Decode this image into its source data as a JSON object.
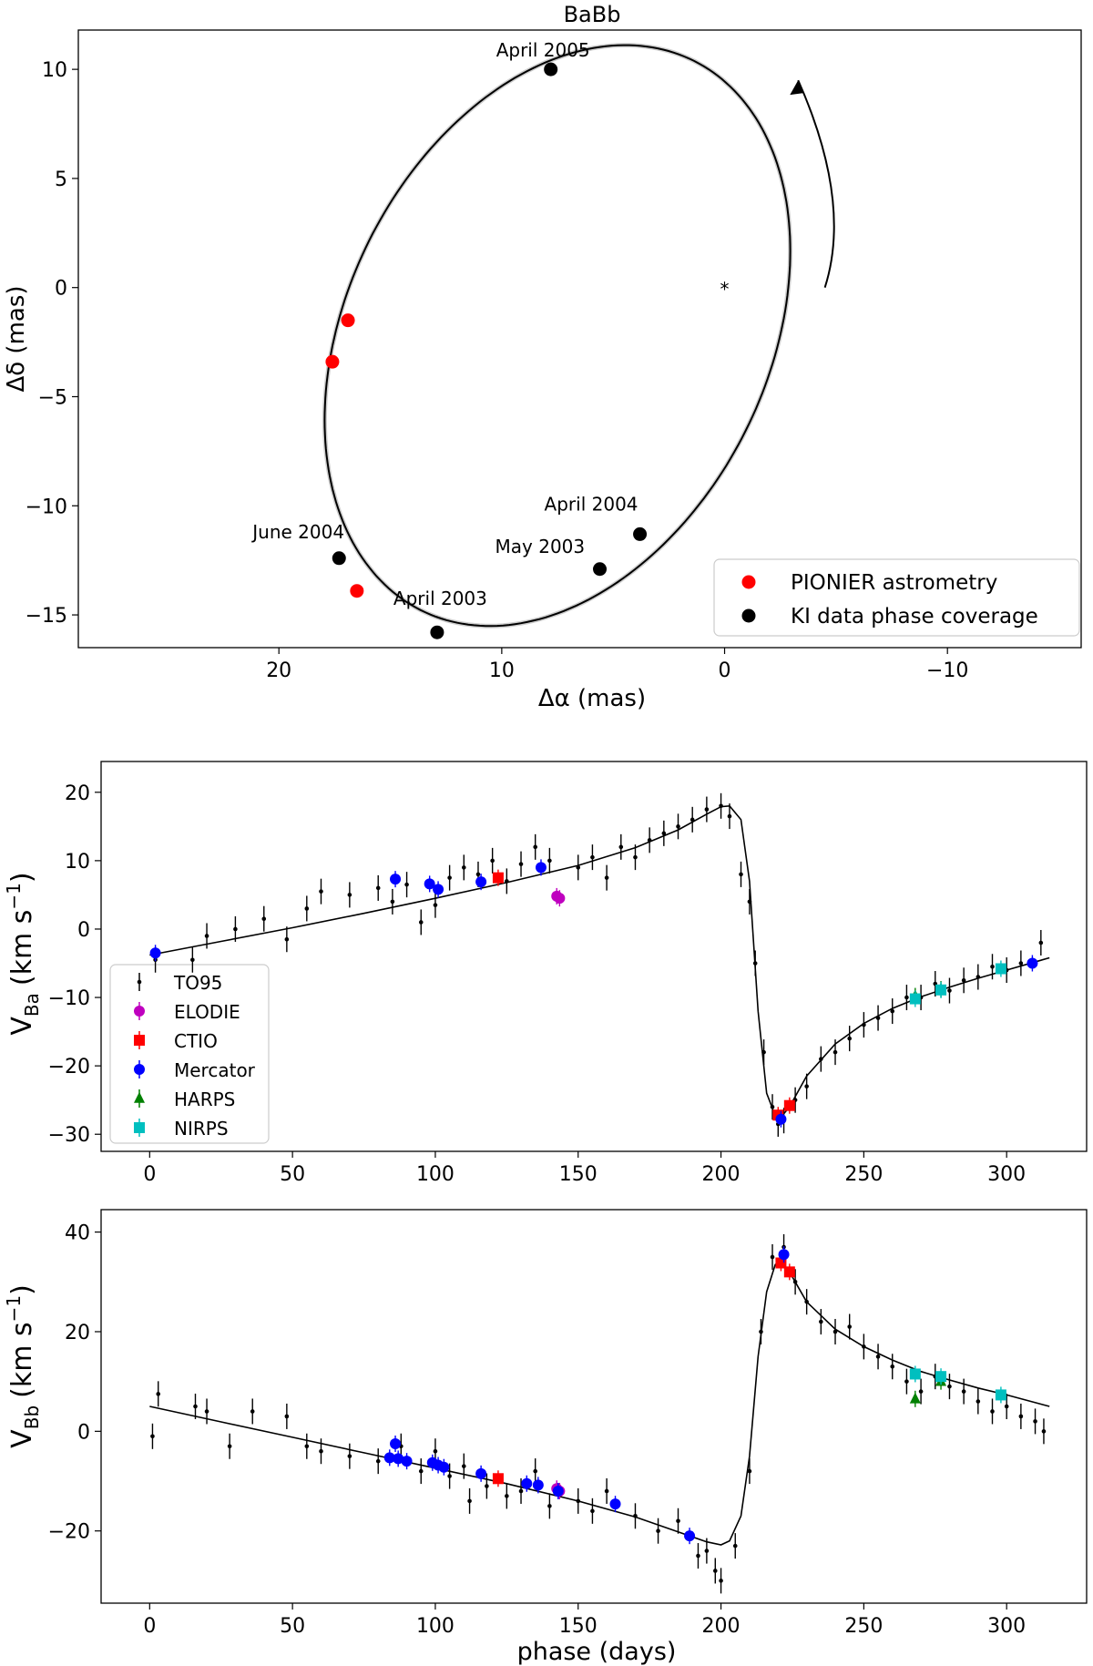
{
  "chart_data": [
    {
      "type": "scatter",
      "title": "BaBb",
      "xlabel": "Δα (mas)",
      "ylabel": "Δδ (mas)",
      "xlim": [
        29,
        -16
      ],
      "ylim": [
        -16.5,
        11.8
      ],
      "xticks": [
        20,
        10,
        0,
        -10
      ],
      "xtick_labels": [
        "20",
        "10",
        "0",
        "−10"
      ],
      "yticks": [
        10,
        5,
        0,
        -5,
        -10,
        -15
      ],
      "ytick_labels": [
        "10",
        "5",
        "0",
        "−5",
        "−10",
        "−15"
      ],
      "orbit": {
        "center": [
          7.5,
          -2.2
        ],
        "semi_axes": [
          9.5,
          14.0
        ],
        "rotation_deg": 25,
        "direction": "counter-clockwise"
      },
      "primary_marker": {
        "x": 0,
        "y": 0,
        "symbol": "*"
      },
      "arrow": {
        "from": [
          -4.5,
          0
        ],
        "to": [
          -3.3,
          9.5
        ]
      },
      "series": [
        {
          "name": "PIONIER astrometry",
          "color": "#ff0000",
          "points": [
            [
              16.9,
              -1.5
            ],
            [
              17.6,
              -3.4
            ],
            [
              16.5,
              -13.9
            ]
          ]
        },
        {
          "name": "KI data phase coverage",
          "color": "#000000",
          "points": [
            [
              7.8,
              10.0
            ],
            [
              17.3,
              -12.4
            ],
            [
              12.9,
              -15.8
            ],
            [
              5.6,
              -12.9
            ],
            [
              3.8,
              -11.3
            ]
          ],
          "labels": [
            "April 2005",
            "June 2004",
            "April 2003",
            "May 2003",
            "April 2004"
          ]
        }
      ],
      "legend": "bottom-right"
    },
    {
      "type": "scatter",
      "title": "",
      "xlabel": "",
      "ylabel": "V_Ba (km s^-1)",
      "ylabel_main": "V",
      "ylabel_sub": "Ba",
      "ylabel_unit": "(km s",
      "ylabel_exp": "−1",
      "ylabel_close": ")",
      "xlim": [
        -17,
        328
      ],
      "ylim": [
        -32.5,
        24.5
      ],
      "xticks": [
        0,
        50,
        100,
        150,
        200,
        250,
        300
      ],
      "xtick_labels": [
        "0",
        "50",
        "100",
        "150",
        "200",
        "250",
        "300"
      ],
      "yticks": [
        20,
        10,
        0,
        -10,
        -20,
        -30
      ],
      "ytick_labels": [
        "20",
        "10",
        "0",
        "−10",
        "−20",
        "−30"
      ],
      "model": {
        "x": [
          0,
          25,
          50,
          75,
          100,
          125,
          150,
          170,
          185,
          195,
          200,
          203,
          207,
          210,
          213,
          216,
          219,
          221,
          224,
          230,
          240,
          250,
          260,
          270,
          280,
          290,
          300,
          315
        ],
        "y": [
          -3.8,
          -1.8,
          0.2,
          2.3,
          4.5,
          6.8,
          9.3,
          11.9,
          14.5,
          16.8,
          17.9,
          18.0,
          16.0,
          7.0,
          -12.0,
          -24.0,
          -27.3,
          -27.5,
          -26.0,
          -21.5,
          -16.8,
          -13.8,
          -11.6,
          -9.9,
          -8.5,
          -7.2,
          -6.0,
          -4.2
        ]
      },
      "series": [
        {
          "name": "TO95",
          "color": "#000000",
          "marker": "point",
          "points": [
            [
              2,
              -4.5
            ],
            [
              15,
              -4.5
            ],
            [
              20,
              -1
            ],
            [
              30,
              0
            ],
            [
              40,
              1.5
            ],
            [
              48,
              -1.5
            ],
            [
              55,
              3
            ],
            [
              60,
              5.5
            ],
            [
              70,
              5
            ],
            [
              80,
              6
            ],
            [
              85,
              4
            ],
            [
              90,
              6.5
            ],
            [
              95,
              1
            ],
            [
              100,
              3.5
            ],
            [
              105,
              7.5
            ],
            [
              110,
              9
            ],
            [
              115,
              8
            ],
            [
              120,
              10
            ],
            [
              125,
              7
            ],
            [
              130,
              9.5
            ],
            [
              135,
              12
            ],
            [
              140,
              10
            ],
            [
              150,
              9
            ],
            [
              155,
              10.5
            ],
            [
              160,
              7.5
            ],
            [
              165,
              12
            ],
            [
              170,
              10.5
            ],
            [
              175,
              13
            ],
            [
              180,
              14
            ],
            [
              185,
              15
            ],
            [
              190,
              16
            ],
            [
              195,
              17.5
            ],
            [
              200,
              18
            ],
            [
              203,
              16.5
            ],
            [
              207,
              8
            ],
            [
              210,
              4
            ],
            [
              212,
              -5
            ],
            [
              215,
              -18
            ],
            [
              218,
              -26
            ],
            [
              220,
              -28.5
            ],
            [
              222,
              -28
            ],
            [
              226,
              -25
            ],
            [
              230,
              -23
            ],
            [
              235,
              -19
            ],
            [
              240,
              -18
            ],
            [
              245,
              -16
            ],
            [
              250,
              -14
            ],
            [
              255,
              -13
            ],
            [
              260,
              -12
            ],
            [
              265,
              -10
            ],
            [
              270,
              -10
            ],
            [
              275,
              -8
            ],
            [
              280,
              -9
            ],
            [
              285,
              -7.5
            ],
            [
              290,
              -7
            ],
            [
              295,
              -5.5
            ],
            [
              300,
              -6
            ],
            [
              305,
              -5
            ],
            [
              312,
              -2
            ]
          ]
        },
        {
          "name": "ELODIE",
          "color": "#bf00bf",
          "marker": "circle",
          "points": [
            [
              142.5,
              4.8
            ],
            [
              143.5,
              4.5
            ]
          ]
        },
        {
          "name": "CTIO",
          "color": "#ff0000",
          "marker": "square",
          "points": [
            [
              122,
              7.5
            ],
            [
              220,
              -27.2
            ],
            [
              224,
              -25.8
            ]
          ]
        },
        {
          "name": "Mercator",
          "color": "#0000ff",
          "marker": "circle",
          "points": [
            [
              2,
              -3.5
            ],
            [
              86,
              7.3
            ],
            [
              98,
              6.6
            ],
            [
              101,
              5.8
            ],
            [
              116,
              6.9
            ],
            [
              137,
              9.0
            ],
            [
              221,
              -27.8
            ],
            [
              309,
              -5.0
            ]
          ]
        },
        {
          "name": "HARPS",
          "color": "#008000",
          "marker": "triangle",
          "points": [
            [
              268,
              -9.8
            ],
            [
              277,
              -8.8
            ]
          ]
        },
        {
          "name": "NIRPS",
          "color": "#00bfbf",
          "marker": "square",
          "points": [
            [
              268,
              -10.2
            ],
            [
              277,
              -8.9
            ],
            [
              298,
              -5.8
            ]
          ]
        }
      ],
      "legend": "left"
    },
    {
      "type": "scatter",
      "title": "",
      "xlabel": "phase (days)",
      "ylabel": "V_Bb (km s^-1)",
      "ylabel_main": "V",
      "ylabel_sub": "Bb",
      "ylabel_unit": "(km s",
      "ylabel_exp": "−1",
      "ylabel_close": ")",
      "xlim": [
        -17,
        328
      ],
      "ylim": [
        -34.5,
        44.5
      ],
      "xticks": [
        0,
        50,
        100,
        150,
        200,
        250,
        300
      ],
      "xtick_labels": [
        "0",
        "50",
        "100",
        "150",
        "200",
        "250",
        "300"
      ],
      "yticks": [
        40,
        20,
        0,
        -20
      ],
      "ytick_labels": [
        "40",
        "20",
        "0",
        "−20"
      ],
      "model": {
        "x": [
          0,
          25,
          50,
          75,
          100,
          125,
          150,
          170,
          185,
          195,
          200,
          203,
          207,
          210,
          213,
          216,
          219,
          221,
          224,
          230,
          240,
          250,
          260,
          270,
          280,
          290,
          300,
          315
        ],
        "y": [
          5.0,
          1.9,
          -1.2,
          -4.3,
          -7.4,
          -10.5,
          -14.0,
          -17.2,
          -20.2,
          -22.2,
          -22.8,
          -22.0,
          -17.0,
          -5.0,
          15.0,
          28.0,
          33.5,
          34.0,
          32.0,
          26.0,
          20.5,
          17.0,
          14.3,
          12.0,
          10.3,
          8.7,
          7.3,
          5.0
        ]
      },
      "series": [
        {
          "name": "TO95",
          "color": "#000000",
          "marker": "point",
          "points": [
            [
              1,
              -1
            ],
            [
              3,
              7.5
            ],
            [
              16,
              5
            ],
            [
              20,
              4
            ],
            [
              28,
              -3
            ],
            [
              36,
              4
            ],
            [
              48,
              3
            ],
            [
              55,
              -3
            ],
            [
              60,
              -4
            ],
            [
              70,
              -5
            ],
            [
              80,
              -6
            ],
            [
              88,
              -3
            ],
            [
              95,
              -8
            ],
            [
              100,
              -4
            ],
            [
              105,
              -9
            ],
            [
              110,
              -7
            ],
            [
              112,
              -14
            ],
            [
              118,
              -11
            ],
            [
              125,
              -13
            ],
            [
              130,
              -12
            ],
            [
              135,
              -8
            ],
            [
              140,
              -15
            ],
            [
              150,
              -14
            ],
            [
              155,
              -16
            ],
            [
              160,
              -12
            ],
            [
              170,
              -17
            ],
            [
              178,
              -20
            ],
            [
              185,
              -18
            ],
            [
              192,
              -25
            ],
            [
              195,
              -24
            ],
            [
              198,
              -28
            ],
            [
              200,
              -30
            ],
            [
              205,
              -23
            ],
            [
              210,
              -8
            ],
            [
              214,
              20
            ],
            [
              218,
              35
            ],
            [
              222,
              37
            ],
            [
              226,
              30
            ],
            [
              230,
              26
            ],
            [
              235,
              22
            ],
            [
              240,
              20
            ],
            [
              245,
              21
            ],
            [
              250,
              17
            ],
            [
              255,
              15
            ],
            [
              260,
              13
            ],
            [
              265,
              10
            ],
            [
              270,
              8
            ],
            [
              275,
              11
            ],
            [
              280,
              9
            ],
            [
              285,
              8
            ],
            [
              290,
              6
            ],
            [
              295,
              4
            ],
            [
              300,
              5
            ],
            [
              305,
              3
            ],
            [
              310,
              2
            ],
            [
              313,
              0
            ]
          ]
        },
        {
          "name": "ELODIE",
          "color": "#bf00bf",
          "marker": "circle",
          "points": [
            [
              142.5,
              -11.5
            ],
            [
              143.5,
              -12.0
            ]
          ]
        },
        {
          "name": "CTIO",
          "color": "#ff0000",
          "marker": "square",
          "points": [
            [
              122,
              -9.5
            ],
            [
              221,
              33.8
            ],
            [
              224,
              32.0
            ]
          ]
        },
        {
          "name": "Mercator",
          "color": "#0000ff",
          "marker": "circle",
          "points": [
            [
              84,
              -5.3
            ],
            [
              86,
              -2.5
            ],
            [
              87,
              -5.5
            ],
            [
              90,
              -6.0
            ],
            [
              99,
              -6.3
            ],
            [
              101,
              -6.8
            ],
            [
              103,
              -7.2
            ],
            [
              116,
              -8.5
            ],
            [
              132,
              -10.5
            ],
            [
              136,
              -10.8
            ],
            [
              143,
              -12.0
            ],
            [
              163,
              -14.6
            ],
            [
              189,
              -21.0
            ],
            [
              222,
              35.5
            ]
          ]
        },
        {
          "name": "HARPS",
          "color": "#008000",
          "marker": "triangle",
          "points": [
            [
              268,
              6.5
            ],
            [
              277,
              10.0
            ]
          ]
        },
        {
          "name": "NIRPS",
          "color": "#00bfbf",
          "marker": "square",
          "points": [
            [
              268,
              11.5
            ],
            [
              277,
              11.0
            ],
            [
              298,
              7.3
            ]
          ]
        }
      ],
      "legend": "none"
    }
  ]
}
